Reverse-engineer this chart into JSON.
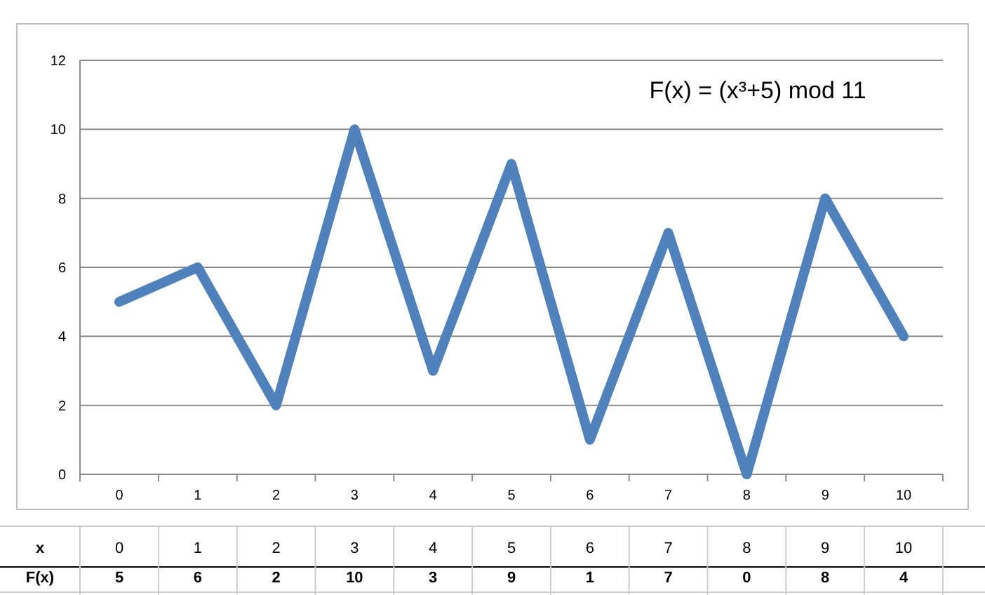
{
  "chart_data": {
    "type": "line",
    "title": "F(x) = (x³+5) mod 11",
    "xlabel": "x",
    "ylabel": "F(x)",
    "categories": [
      "0",
      "1",
      "2",
      "3",
      "4",
      "5",
      "6",
      "7",
      "8",
      "9",
      "10"
    ],
    "series": [
      {
        "color": "#4f81bd",
        "values": [
          5,
          6,
          2,
          10,
          3,
          9,
          1,
          7,
          0,
          8,
          4
        ]
      }
    ],
    "ylim": [
      0,
      12
    ],
    "yticks": [
      0,
      2,
      4,
      6,
      8,
      10,
      12
    ],
    "grid": "y",
    "data_labels": true,
    "marker": "none",
    "line_style": "solid"
  }
}
